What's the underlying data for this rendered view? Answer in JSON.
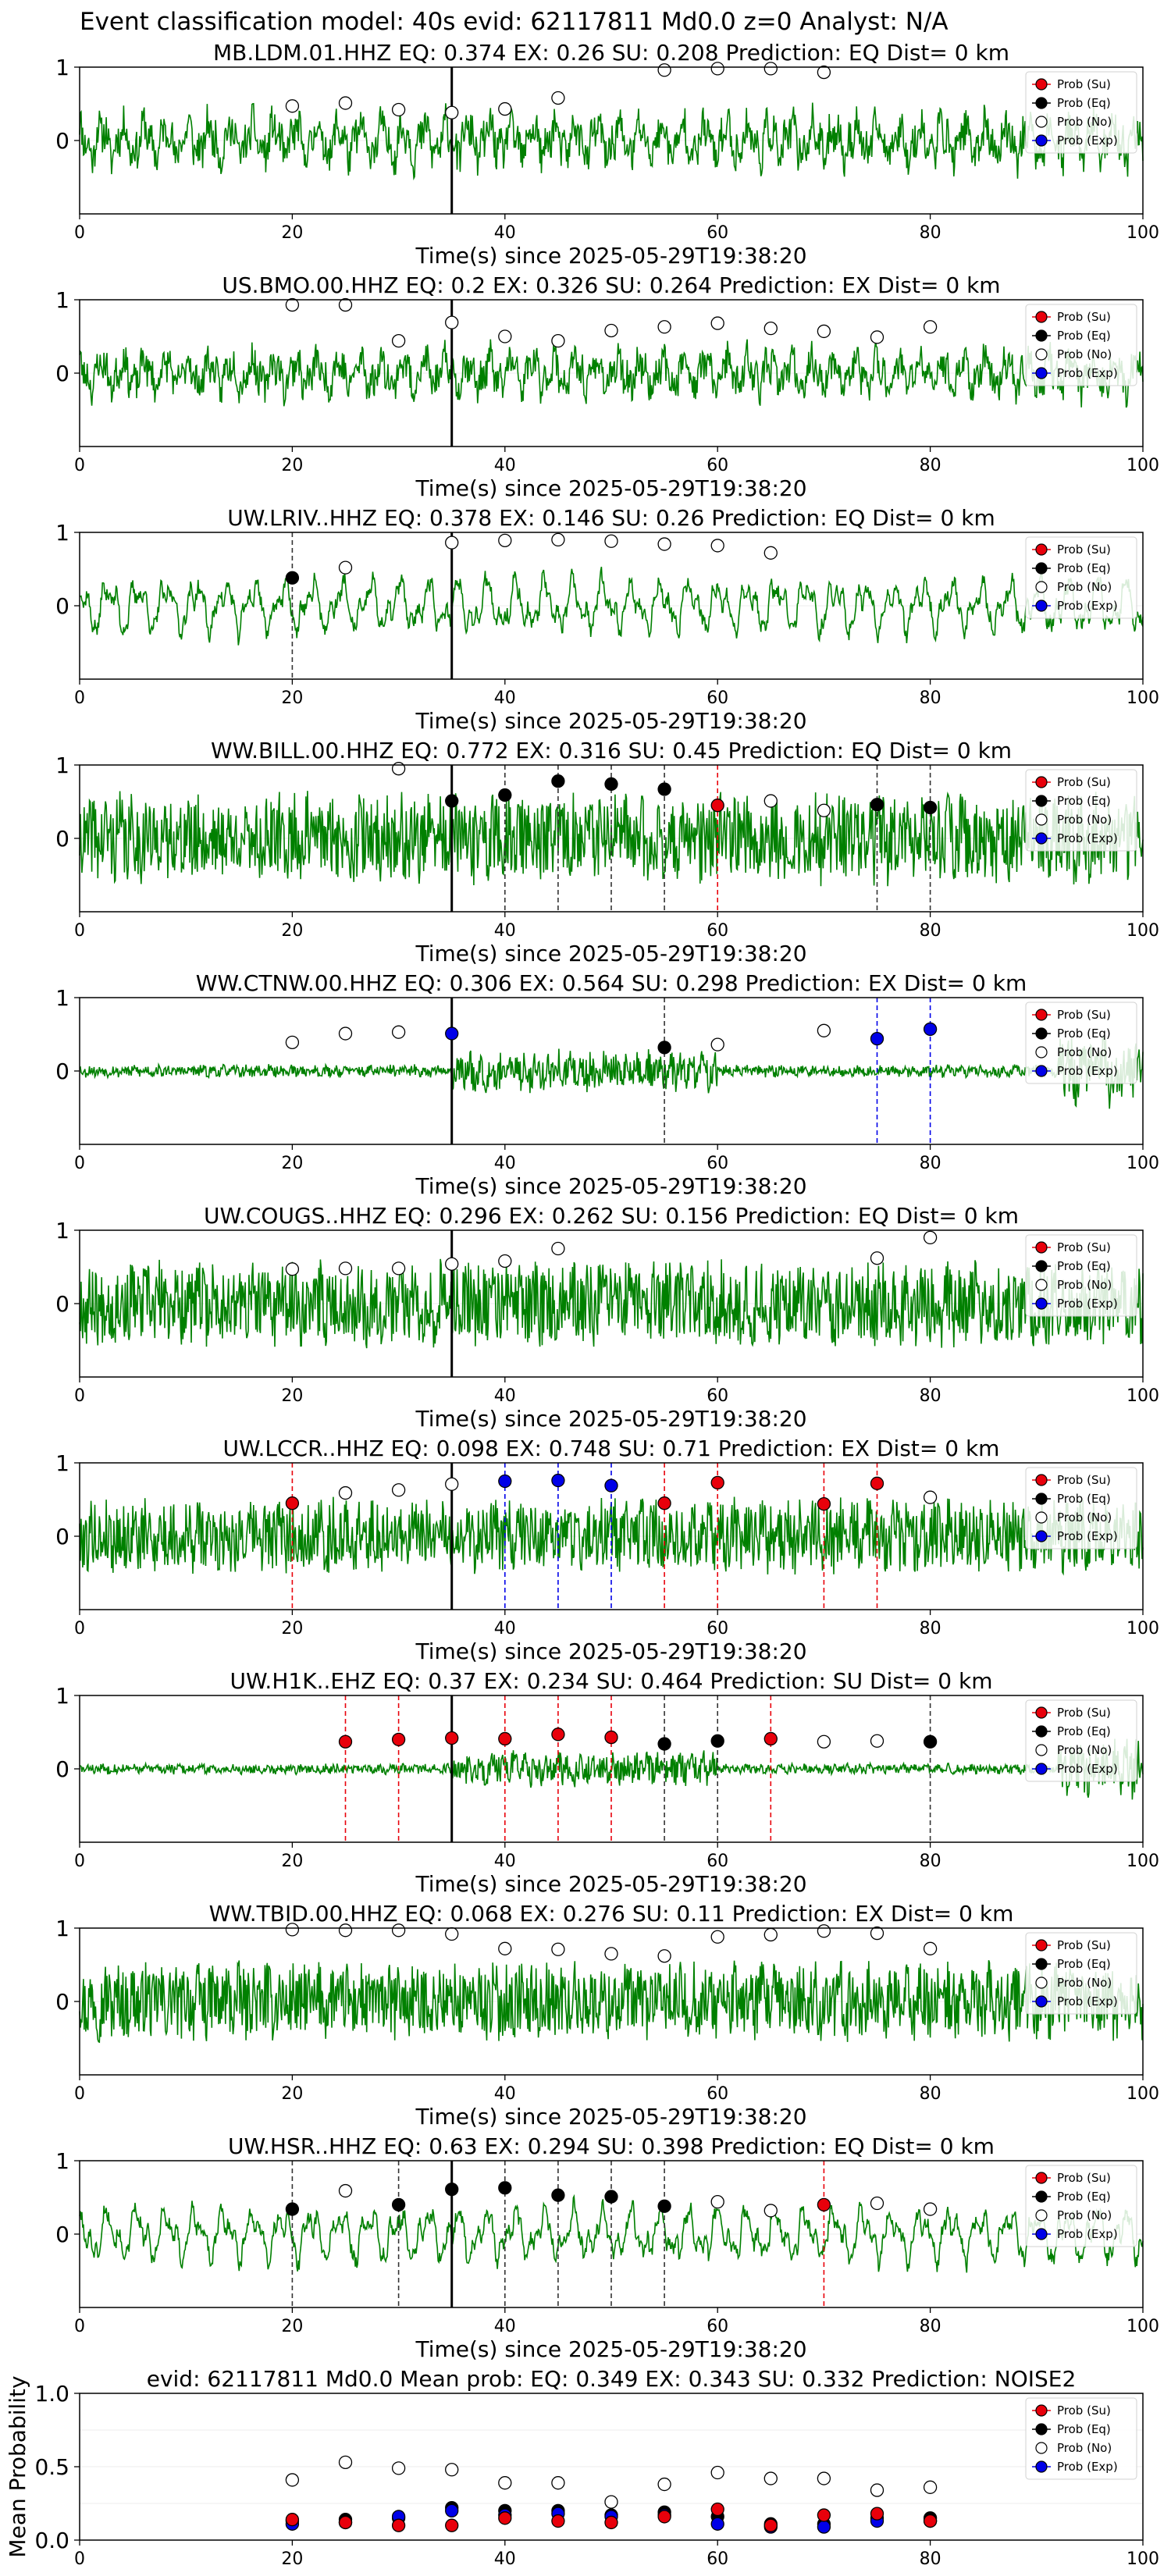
{
  "header": {
    "title": "Event classification model: 40s evid: 62117811 Md0.0 z=0 Analyst: N/A"
  },
  "legend": {
    "items": [
      {
        "label": "Prob (Su)",
        "color": "#e8000b"
      },
      {
        "label": "Prob (Eq)",
        "color": "#000000"
      },
      {
        "label": "Prob (No)",
        "color": "#ffffff"
      },
      {
        "label": "Prob (Exp)",
        "color": "#0000e8"
      }
    ]
  },
  "colors": {
    "trace": "#008000",
    "su": "#e8000b",
    "eq": "#000000",
    "no": "#ffffff",
    "exp": "#0000e8"
  },
  "chart_data": [
    {
      "type": "line",
      "title": "MB.LDM.01.HHZ   EQ: 0.374  EX: 0.26  SU: 0.208   Prediction: EQ    Dist= 0 km",
      "xlabel": "Time(s) since 2025-05-29T19:38:20",
      "xlim": [
        0,
        100
      ],
      "xticks": [
        0,
        20,
        40,
        60,
        80,
        100
      ],
      "yticks": [
        0,
        1
      ],
      "signal": "pulse",
      "trace_amp": 0.62,
      "seed": 11,
      "arrival": 35,
      "detections": [],
      "points": [
        {
          "x": 20,
          "y": 0.47,
          "c": "no"
        },
        {
          "x": 25,
          "y": 0.51,
          "c": "no"
        },
        {
          "x": 30,
          "y": 0.42,
          "c": "no"
        },
        {
          "x": 35,
          "y": 0.38,
          "c": "no"
        },
        {
          "x": 40,
          "y": 0.43,
          "c": "no"
        },
        {
          "x": 45,
          "y": 0.58,
          "c": "no"
        },
        {
          "x": 55,
          "y": 0.96,
          "c": "no"
        },
        {
          "x": 60,
          "y": 0.98,
          "c": "no"
        },
        {
          "x": 65,
          "y": 0.98,
          "c": "no"
        },
        {
          "x": 70,
          "y": 0.93,
          "c": "no"
        }
      ]
    },
    {
      "type": "line",
      "title": "US.BMO.00.HHZ   EQ: 0.2  EX: 0.326  SU: 0.264   Prediction: EX    Dist= 0 km",
      "xlabel": "Time(s) since 2025-05-29T19:38:20",
      "xlim": [
        0,
        100
      ],
      "xticks": [
        0,
        20,
        40,
        60,
        80,
        100
      ],
      "yticks": [
        0,
        1
      ],
      "signal": "pulse",
      "trace_amp": 0.55,
      "seed": 23,
      "arrival": 35,
      "detections": [],
      "points": [
        {
          "x": 20,
          "y": 0.93,
          "c": "no"
        },
        {
          "x": 25,
          "y": 0.93,
          "c": "no"
        },
        {
          "x": 30,
          "y": 0.44,
          "c": "no"
        },
        {
          "x": 35,
          "y": 0.69,
          "c": "no"
        },
        {
          "x": 40,
          "y": 0.5,
          "c": "no"
        },
        {
          "x": 45,
          "y": 0.44,
          "c": "no"
        },
        {
          "x": 50,
          "y": 0.58,
          "c": "no"
        },
        {
          "x": 55,
          "y": 0.63,
          "c": "no"
        },
        {
          "x": 60,
          "y": 0.68,
          "c": "no"
        },
        {
          "x": 65,
          "y": 0.61,
          "c": "no"
        },
        {
          "x": 70,
          "y": 0.57,
          "c": "no"
        },
        {
          "x": 75,
          "y": 0.49,
          "c": "no"
        },
        {
          "x": 80,
          "y": 0.63,
          "c": "no"
        }
      ]
    },
    {
      "type": "line",
      "title": "UW.LRIV..HHZ   EQ: 0.378  EX: 0.146  SU: 0.26   Prediction: EQ    Dist= 0 km",
      "xlabel": "Time(s) since 2025-05-29T19:38:20",
      "xlim": [
        0,
        100
      ],
      "xticks": [
        0,
        20,
        40,
        60,
        80,
        100
      ],
      "yticks": [
        0,
        1
      ],
      "signal": "wave",
      "trace_amp": 0.6,
      "seed": 37,
      "arrival": 35,
      "detections": [
        {
          "x": 20,
          "c": "eq"
        }
      ],
      "points": [
        {
          "x": 20,
          "y": 0.38,
          "c": "eq"
        },
        {
          "x": 25,
          "y": 0.52,
          "c": "no"
        },
        {
          "x": 35,
          "y": 0.86,
          "c": "no"
        },
        {
          "x": 40,
          "y": 0.89,
          "c": "no"
        },
        {
          "x": 45,
          "y": 0.9,
          "c": "no"
        },
        {
          "x": 50,
          "y": 0.88,
          "c": "no"
        },
        {
          "x": 55,
          "y": 0.84,
          "c": "no"
        },
        {
          "x": 60,
          "y": 0.82,
          "c": "no"
        },
        {
          "x": 65,
          "y": 0.72,
          "c": "no"
        }
      ]
    },
    {
      "type": "line",
      "title": "WW.BILL.00.HHZ   EQ: 0.772  EX: 0.316  SU: 0.45   Prediction: EQ    Dist= 0 km",
      "xlabel": "Time(s) since 2025-05-29T19:38:20",
      "xlim": [
        0,
        100
      ],
      "xticks": [
        0,
        20,
        40,
        60,
        80,
        100
      ],
      "yticks": [
        0,
        1
      ],
      "signal": "noisy",
      "trace_amp": 0.75,
      "seed": 41,
      "arrival": 35,
      "detections": [
        {
          "x": 40,
          "c": "eq"
        },
        {
          "x": 45,
          "c": "eq"
        },
        {
          "x": 50,
          "c": "eq"
        },
        {
          "x": 55,
          "c": "eq"
        },
        {
          "x": 60,
          "c": "su"
        },
        {
          "x": 75,
          "c": "eq"
        },
        {
          "x": 80,
          "c": "eq"
        }
      ],
      "points": [
        {
          "x": 30,
          "y": 0.95,
          "c": "no"
        },
        {
          "x": 35,
          "y": 0.51,
          "c": "eq"
        },
        {
          "x": 40,
          "y": 0.59,
          "c": "eq"
        },
        {
          "x": 45,
          "y": 0.78,
          "c": "eq"
        },
        {
          "x": 50,
          "y": 0.74,
          "c": "eq"
        },
        {
          "x": 55,
          "y": 0.67,
          "c": "eq"
        },
        {
          "x": 60,
          "y": 0.45,
          "c": "su"
        },
        {
          "x": 65,
          "y": 0.51,
          "c": "no"
        },
        {
          "x": 70,
          "y": 0.38,
          "c": "no"
        },
        {
          "x": 75,
          "y": 0.46,
          "c": "eq"
        },
        {
          "x": 80,
          "y": 0.42,
          "c": "eq"
        }
      ]
    },
    {
      "type": "line",
      "title": "WW.CTNW.00.HHZ   EQ: 0.306  EX: 0.564  SU: 0.298   Prediction: EX    Dist= 0 km",
      "xlabel": "Time(s) since 2025-05-29T19:38:20",
      "xlim": [
        0,
        100
      ],
      "xticks": [
        0,
        20,
        40,
        60,
        80,
        100
      ],
      "yticks": [
        0,
        1
      ],
      "signal": "quiet",
      "trace_amp": 0.6,
      "seed": 53,
      "arrival": 35,
      "detections": [
        {
          "x": 55,
          "c": "eq"
        },
        {
          "x": 75,
          "c": "exp"
        },
        {
          "x": 80,
          "c": "exp"
        }
      ],
      "points": [
        {
          "x": 20,
          "y": 0.39,
          "c": "no"
        },
        {
          "x": 25,
          "y": 0.51,
          "c": "no"
        },
        {
          "x": 30,
          "y": 0.53,
          "c": "no"
        },
        {
          "x": 35,
          "y": 0.51,
          "c": "exp"
        },
        {
          "x": 55,
          "y": 0.32,
          "c": "eq"
        },
        {
          "x": 60,
          "y": 0.36,
          "c": "no"
        },
        {
          "x": 70,
          "y": 0.55,
          "c": "no"
        },
        {
          "x": 75,
          "y": 0.44,
          "c": "exp"
        },
        {
          "x": 80,
          "y": 0.57,
          "c": "exp"
        }
      ]
    },
    {
      "type": "line",
      "title": "UW.COUGS..HHZ   EQ: 0.296  EX: 0.262  SU: 0.156   Prediction: EQ    Dist= 0 km",
      "xlabel": "Time(s) since 2025-05-29T19:38:20",
      "xlim": [
        0,
        100
      ],
      "xticks": [
        0,
        20,
        40,
        60,
        80,
        100
      ],
      "yticks": [
        0,
        1
      ],
      "signal": "noisy",
      "trace_amp": 0.7,
      "seed": 67,
      "arrival": 35,
      "detections": [],
      "points": [
        {
          "x": 20,
          "y": 0.47,
          "c": "no"
        },
        {
          "x": 25,
          "y": 0.48,
          "c": "no"
        },
        {
          "x": 30,
          "y": 0.48,
          "c": "no"
        },
        {
          "x": 35,
          "y": 0.54,
          "c": "no"
        },
        {
          "x": 40,
          "y": 0.58,
          "c": "no"
        },
        {
          "x": 45,
          "y": 0.75,
          "c": "no"
        },
        {
          "x": 75,
          "y": 0.62,
          "c": "no"
        },
        {
          "x": 80,
          "y": 0.9,
          "c": "no"
        }
      ]
    },
    {
      "type": "line",
      "title": "UW.LCCR..HHZ   EQ: 0.098  EX: 0.748  SU: 0.71   Prediction: EX    Dist= 0 km",
      "xlabel": "Time(s) since 2025-05-29T19:38:20",
      "xlim": [
        0,
        100
      ],
      "xticks": [
        0,
        20,
        40,
        60,
        80,
        100
      ],
      "yticks": [
        0,
        1
      ],
      "signal": "noisy",
      "trace_amp": 0.62,
      "seed": 79,
      "arrival": 35,
      "detections": [
        {
          "x": 20,
          "c": "su"
        },
        {
          "x": 40,
          "c": "exp"
        },
        {
          "x": 45,
          "c": "exp"
        },
        {
          "x": 50,
          "c": "exp"
        },
        {
          "x": 55,
          "c": "su"
        },
        {
          "x": 60,
          "c": "su"
        },
        {
          "x": 70,
          "c": "su"
        },
        {
          "x": 75,
          "c": "su"
        }
      ],
      "points": [
        {
          "x": 20,
          "y": 0.45,
          "c": "su"
        },
        {
          "x": 25,
          "y": 0.59,
          "c": "no"
        },
        {
          "x": 30,
          "y": 0.63,
          "c": "no"
        },
        {
          "x": 35,
          "y": 0.71,
          "c": "no"
        },
        {
          "x": 40,
          "y": 0.75,
          "c": "exp"
        },
        {
          "x": 45,
          "y": 0.76,
          "c": "exp"
        },
        {
          "x": 50,
          "y": 0.69,
          "c": "exp"
        },
        {
          "x": 55,
          "y": 0.45,
          "c": "su"
        },
        {
          "x": 60,
          "y": 0.73,
          "c": "su"
        },
        {
          "x": 70,
          "y": 0.44,
          "c": "su"
        },
        {
          "x": 75,
          "y": 0.72,
          "c": "su"
        },
        {
          "x": 80,
          "y": 0.53,
          "c": "no"
        }
      ]
    },
    {
      "type": "line",
      "title": "UW.H1K..EHZ   EQ: 0.37  EX: 0.234  SU: 0.464   Prediction: SU    Dist= 0 km",
      "xlabel": "Time(s) since 2025-05-29T19:38:20",
      "xlim": [
        0,
        100
      ],
      "xticks": [
        0,
        20,
        40,
        60,
        80,
        100
      ],
      "yticks": [
        0,
        1
      ],
      "signal": "quiet",
      "trace_amp": 0.5,
      "seed": 83,
      "arrival": 35,
      "detections": [
        {
          "x": 25,
          "c": "su"
        },
        {
          "x": 30,
          "c": "su"
        },
        {
          "x": 40,
          "c": "su"
        },
        {
          "x": 45,
          "c": "su"
        },
        {
          "x": 50,
          "c": "su"
        },
        {
          "x": 55,
          "c": "eq"
        },
        {
          "x": 60,
          "c": "eq"
        },
        {
          "x": 65,
          "c": "su"
        },
        {
          "x": 80,
          "c": "eq"
        }
      ],
      "points": [
        {
          "x": 25,
          "y": 0.37,
          "c": "su"
        },
        {
          "x": 30,
          "y": 0.4,
          "c": "su"
        },
        {
          "x": 35,
          "y": 0.42,
          "c": "su"
        },
        {
          "x": 40,
          "y": 0.41,
          "c": "su"
        },
        {
          "x": 45,
          "y": 0.47,
          "c": "su"
        },
        {
          "x": 50,
          "y": 0.43,
          "c": "su"
        },
        {
          "x": 55,
          "y": 0.34,
          "c": "eq"
        },
        {
          "x": 60,
          "y": 0.38,
          "c": "eq"
        },
        {
          "x": 65,
          "y": 0.41,
          "c": "su"
        },
        {
          "x": 70,
          "y": 0.37,
          "c": "no"
        },
        {
          "x": 75,
          "y": 0.38,
          "c": "no"
        },
        {
          "x": 80,
          "y": 0.37,
          "c": "eq"
        }
      ]
    },
    {
      "type": "line",
      "title": "WW.TBID.00.HHZ   EQ: 0.068  EX: 0.276  SU: 0.11   Prediction: EX    Dist= 0 km",
      "xlabel": "Time(s) since 2025-05-29T19:38:20",
      "xlim": [
        0,
        100
      ],
      "xticks": [
        0,
        20,
        40,
        60,
        80,
        100
      ],
      "yticks": [
        0,
        1
      ],
      "signal": "noisy",
      "trace_amp": 0.65,
      "seed": 97,
      "arrival": null,
      "detections": [],
      "points": [
        {
          "x": 20,
          "y": 0.98,
          "c": "no"
        },
        {
          "x": 25,
          "y": 0.97,
          "c": "no"
        },
        {
          "x": 30,
          "y": 0.97,
          "c": "no"
        },
        {
          "x": 35,
          "y": 0.92,
          "c": "no"
        },
        {
          "x": 40,
          "y": 0.72,
          "c": "no"
        },
        {
          "x": 45,
          "y": 0.71,
          "c": "no"
        },
        {
          "x": 50,
          "y": 0.65,
          "c": "no"
        },
        {
          "x": 55,
          "y": 0.62,
          "c": "no"
        },
        {
          "x": 60,
          "y": 0.88,
          "c": "no"
        },
        {
          "x": 65,
          "y": 0.91,
          "c": "no"
        },
        {
          "x": 70,
          "y": 0.96,
          "c": "no"
        },
        {
          "x": 75,
          "y": 0.93,
          "c": "no"
        },
        {
          "x": 80,
          "y": 0.72,
          "c": "no"
        }
      ]
    },
    {
      "type": "line",
      "title": "UW.HSR..HHZ   EQ: 0.63  EX: 0.294  SU: 0.398   Prediction: EQ    Dist= 0 km",
      "xlabel": "Time(s) since 2025-05-29T19:38:20",
      "xlim": [
        0,
        100
      ],
      "xticks": [
        0,
        20,
        40,
        60,
        80,
        100
      ],
      "yticks": [
        0,
        1
      ],
      "signal": "wave",
      "trace_amp": 0.6,
      "seed": 101,
      "arrival": 35,
      "detections": [
        {
          "x": 20,
          "c": "eq"
        },
        {
          "x": 30,
          "c": "eq"
        },
        {
          "x": 40,
          "c": "eq"
        },
        {
          "x": 45,
          "c": "eq"
        },
        {
          "x": 50,
          "c": "eq"
        },
        {
          "x": 55,
          "c": "eq"
        },
        {
          "x": 70,
          "c": "su"
        }
      ],
      "points": [
        {
          "x": 20,
          "y": 0.34,
          "c": "eq"
        },
        {
          "x": 25,
          "y": 0.59,
          "c": "no"
        },
        {
          "x": 30,
          "y": 0.4,
          "c": "eq"
        },
        {
          "x": 35,
          "y": 0.61,
          "c": "eq"
        },
        {
          "x": 40,
          "y": 0.63,
          "c": "eq"
        },
        {
          "x": 45,
          "y": 0.53,
          "c": "eq"
        },
        {
          "x": 50,
          "y": 0.51,
          "c": "eq"
        },
        {
          "x": 55,
          "y": 0.38,
          "c": "eq"
        },
        {
          "x": 60,
          "y": 0.44,
          "c": "no"
        },
        {
          "x": 65,
          "y": 0.32,
          "c": "no"
        },
        {
          "x": 70,
          "y": 0.4,
          "c": "su"
        },
        {
          "x": 75,
          "y": 0.42,
          "c": "no"
        },
        {
          "x": 80,
          "y": 0.34,
          "c": "no"
        }
      ]
    },
    {
      "type": "scatter",
      "title": "evid: 62117811  Md0.0   Mean prob:   EQ: 0.349  EX: 0.343  SU: 0.332   Prediction: NOISE2",
      "xlabel": "",
      "ylabel": "Mean Probability",
      "xlim": [
        0,
        100
      ],
      "ylim": [
        0,
        1.0
      ],
      "xticks": [
        0,
        20,
        40,
        60,
        80,
        100
      ],
      "yticks": [
        0.0,
        0.5,
        1.0
      ],
      "ytick_labels": [
        "0.0",
        "0.5",
        "1.0"
      ],
      "series": [
        {
          "key": "no",
          "x": [
            20,
            25,
            30,
            35,
            40,
            45,
            50,
            55,
            60,
            65,
            70,
            75,
            80
          ],
          "y": [
            0.41,
            0.53,
            0.49,
            0.48,
            0.39,
            0.39,
            0.26,
            0.38,
            0.46,
            0.42,
            0.42,
            0.34,
            0.36
          ]
        },
        {
          "key": "eq",
          "x": [
            20,
            25,
            30,
            35,
            40,
            45,
            50,
            55,
            60,
            65,
            70,
            75,
            80
          ],
          "y": [
            0.13,
            0.14,
            0.15,
            0.22,
            0.2,
            0.2,
            0.17,
            0.19,
            0.16,
            0.11,
            0.11,
            0.15,
            0.15
          ]
        },
        {
          "key": "exp",
          "x": [
            20,
            25,
            30,
            35,
            40,
            45,
            50,
            55,
            60,
            65,
            70,
            75,
            80
          ],
          "y": [
            0.11,
            0.12,
            0.16,
            0.2,
            0.17,
            0.18,
            0.16,
            0.17,
            0.11,
            0.09,
            0.09,
            0.13,
            0.13
          ]
        },
        {
          "key": "su",
          "x": [
            20,
            25,
            30,
            35,
            40,
            45,
            50,
            55,
            60,
            65,
            70,
            75,
            80
          ],
          "y": [
            0.14,
            0.12,
            0.1,
            0.1,
            0.15,
            0.13,
            0.12,
            0.16,
            0.21,
            0.1,
            0.17,
            0.18,
            0.13
          ]
        }
      ]
    }
  ]
}
